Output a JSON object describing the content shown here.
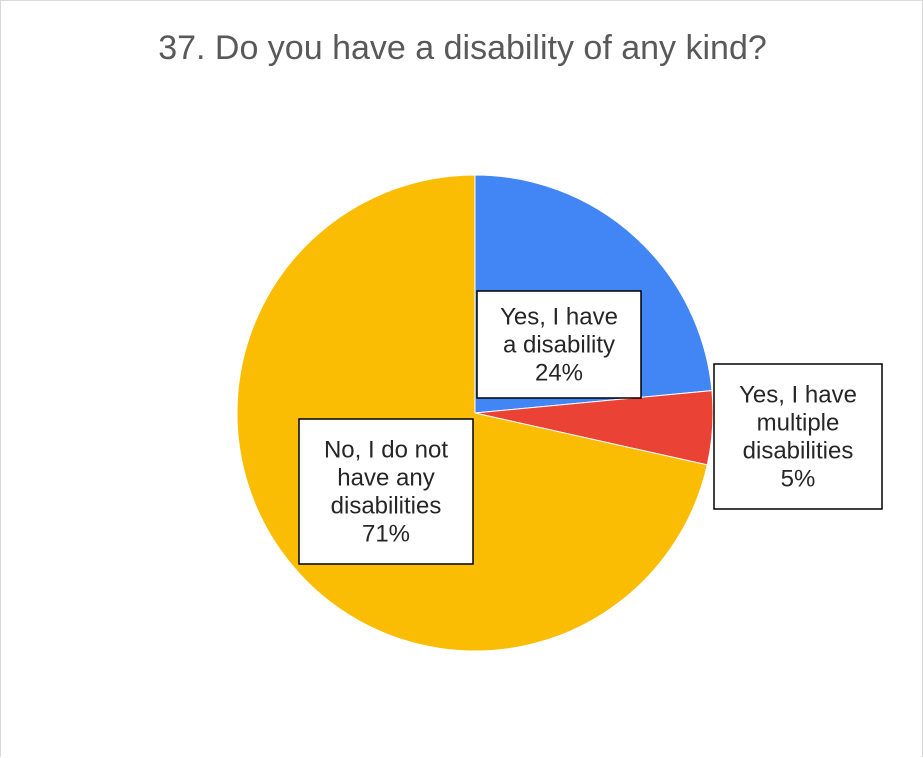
{
  "chart_data": {
    "type": "pie",
    "title": "37. Do you have a disability of any kind?",
    "slices": [
      {
        "label_lines": [
          "Yes, I have",
          "a disability"
        ],
        "percent_label": "24%",
        "value": 23.5,
        "color": "#4285F4"
      },
      {
        "label_lines": [
          "Yes, I have",
          "multiple",
          "disabilities"
        ],
        "percent_label": "5%",
        "value": 5.0,
        "color": "#EA4335"
      },
      {
        "label_lines": [
          "No, I do not",
          "have any",
          "disabilities"
        ],
        "percent_label": "71%",
        "value": 71.5,
        "color": "#FBBC04"
      }
    ],
    "start_angle_deg": 0,
    "direction": "clockwise",
    "legend": "none",
    "data_labels": "boxed"
  }
}
